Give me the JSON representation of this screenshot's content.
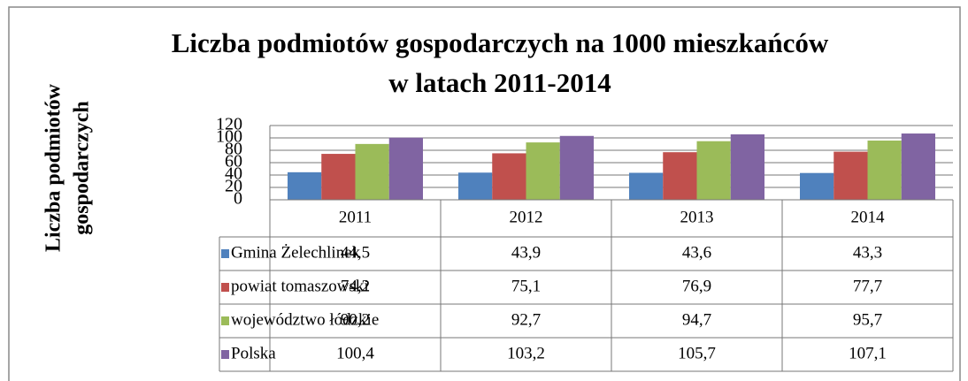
{
  "chart_data": {
    "type": "bar",
    "title": [
      "Liczba podmiotów gospodarczych na 1000 mieszkańców",
      "w latach 2011-2014"
    ],
    "y_label": [
      "Liczba podmiotów",
      "gospodarczych"
    ],
    "categories": [
      "2011",
      "2012",
      "2013",
      "2014"
    ],
    "series": [
      {
        "name": "Gmina Żelechlinek",
        "color": "#4f81bd",
        "values": [
          44.5,
          43.9,
          43.6,
          43.3
        ],
        "value_labels": [
          "44,5",
          "43,9",
          "43,6",
          "43,3"
        ]
      },
      {
        "name": "powiat tomaszowski",
        "color": "#c0504d",
        "values": [
          74.2,
          75.1,
          76.9,
          77.7
        ],
        "value_labels": [
          "74,2",
          "75,1",
          "76,9",
          "77,7"
        ]
      },
      {
        "name": "województwo łódzkie",
        "color": "#9bbb59",
        "values": [
          90.2,
          92.7,
          94.7,
          95.7
        ],
        "value_labels": [
          "90,2",
          "92,7",
          "94,7",
          "95,7"
        ]
      },
      {
        "name": "Polska",
        "color": "#8064a2",
        "values": [
          100.4,
          103.2,
          105.7,
          107.1
        ],
        "value_labels": [
          "100,4",
          "103,2",
          "105,7",
          "107,1"
        ]
      }
    ],
    "ylim": [
      0,
      120
    ],
    "yticks": [
      0,
      20,
      40,
      60,
      80,
      100,
      120
    ],
    "grid": true,
    "legend": "table"
  }
}
